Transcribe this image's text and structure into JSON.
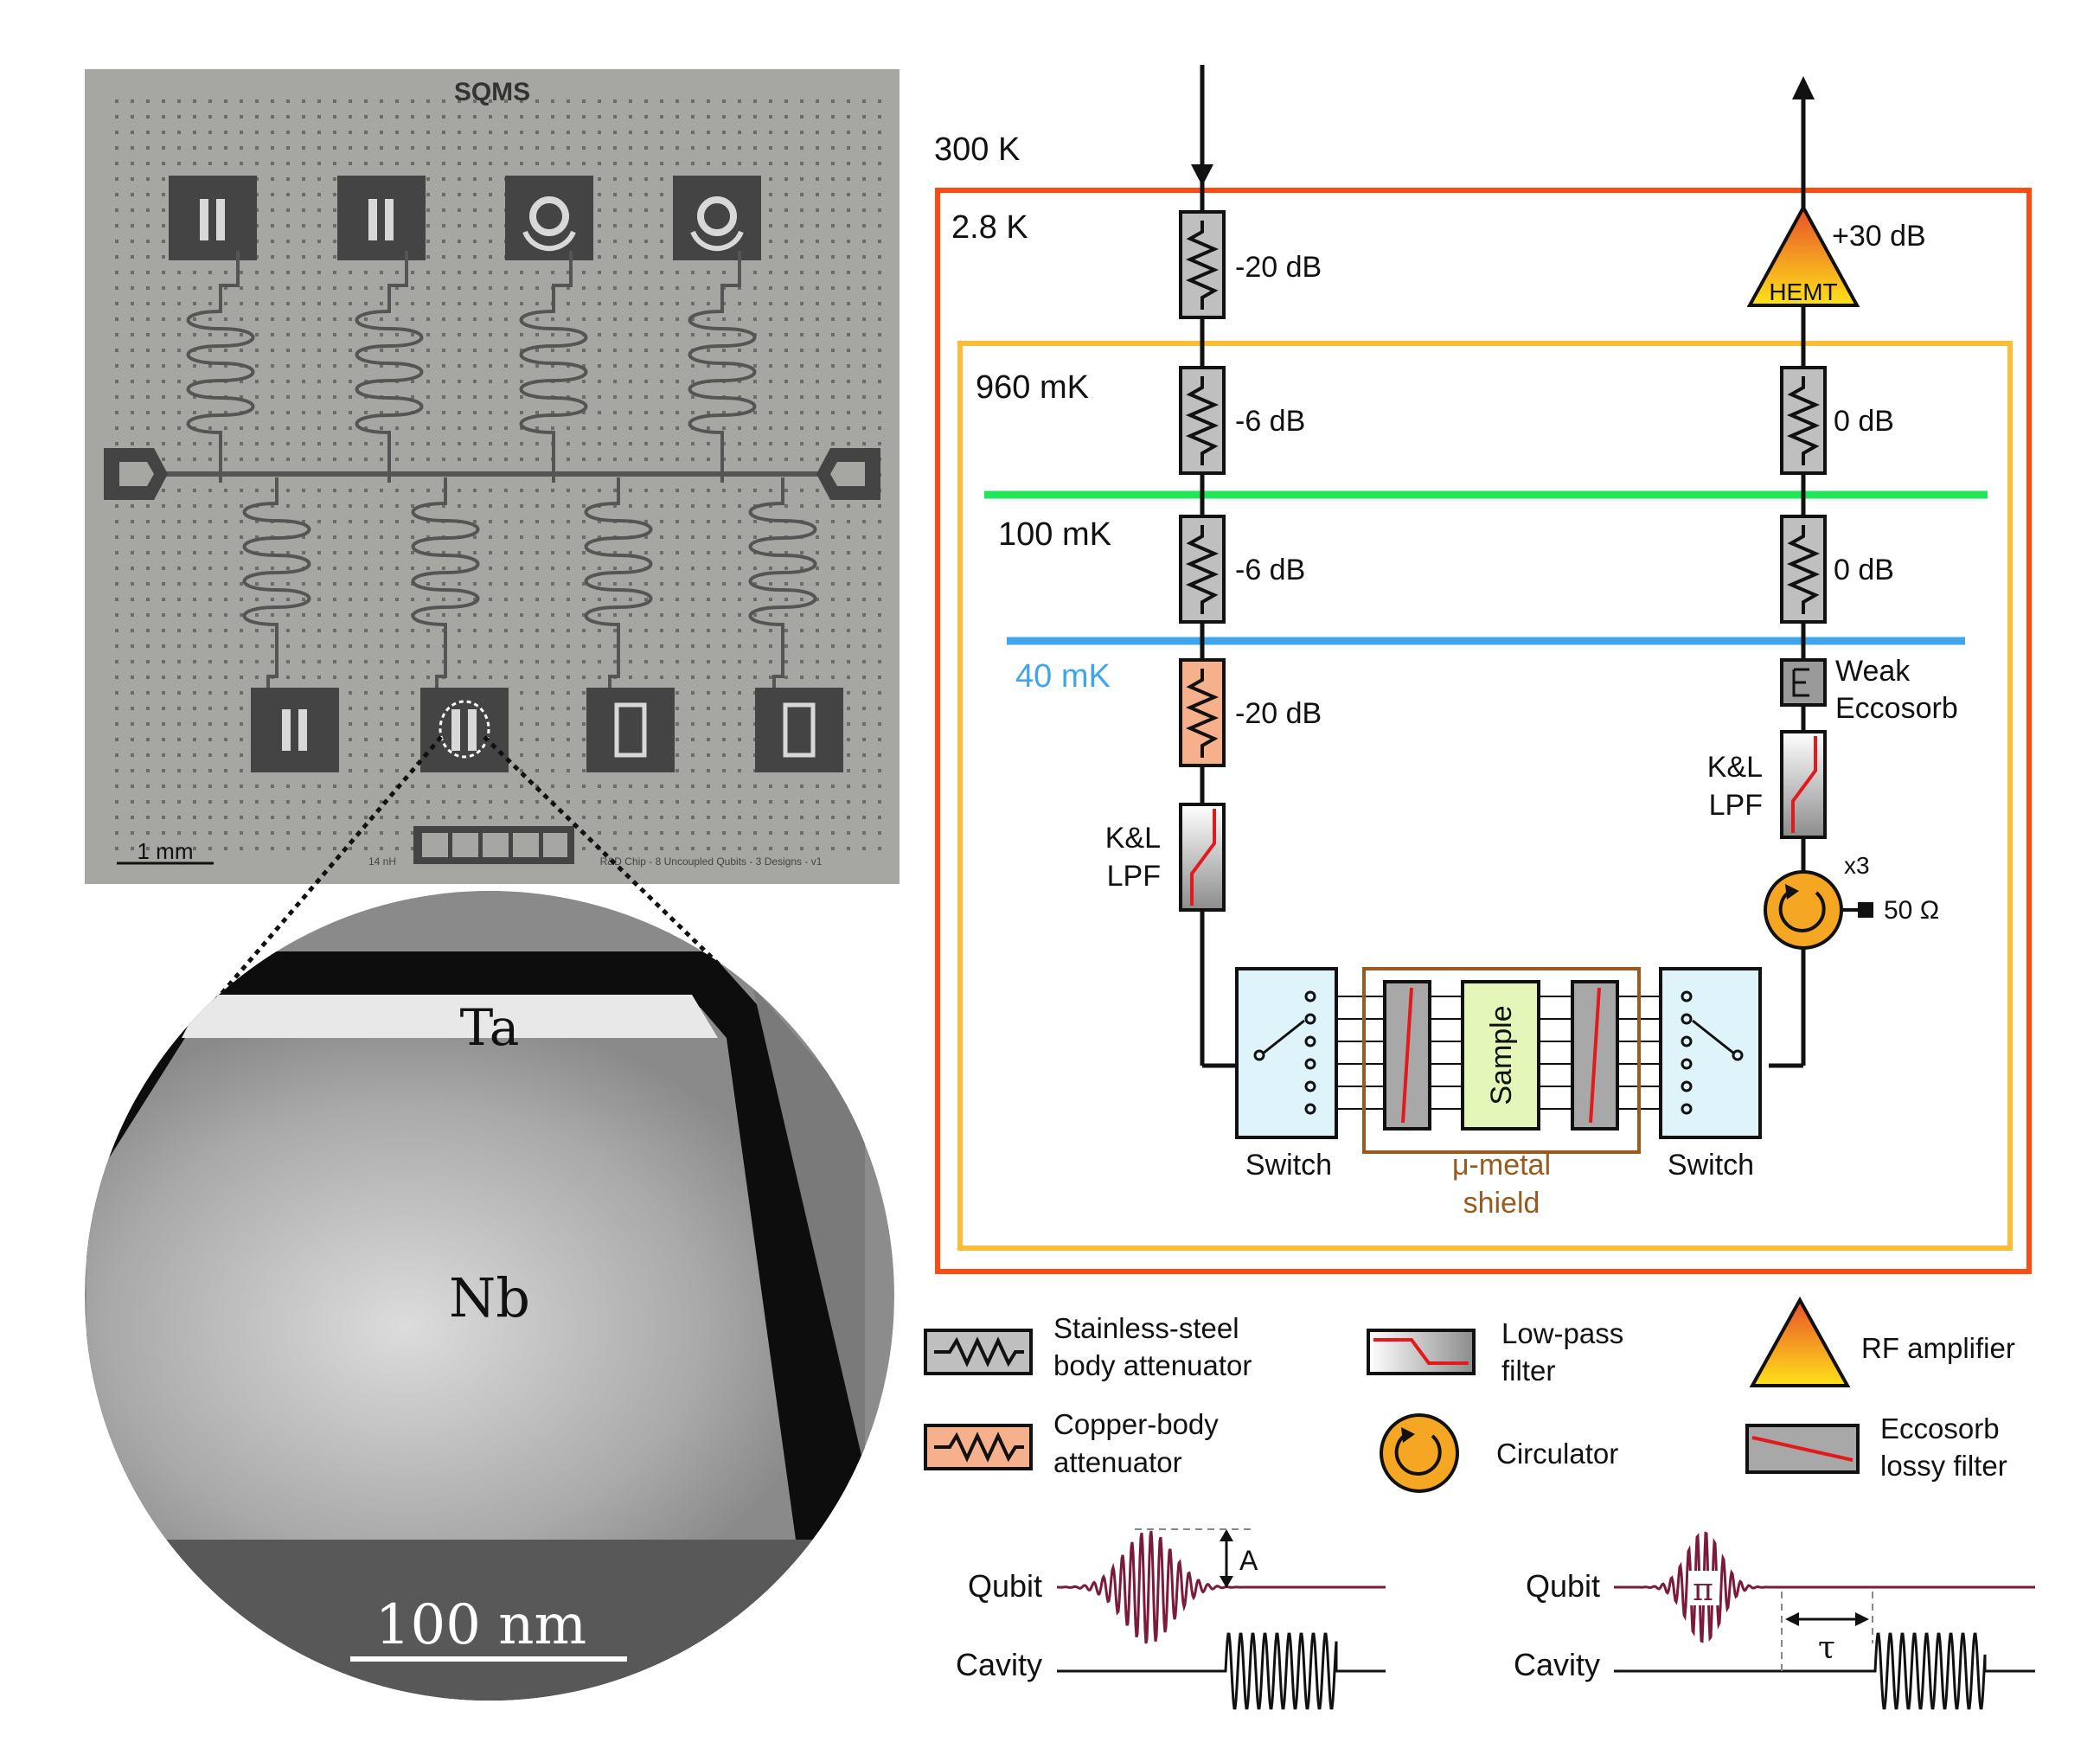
{
  "chip": {
    "logo": "SQMS",
    "scale_bar": "1 mm",
    "inductance_label": "14 nH",
    "chip_caption": "R&D Chip - 8 Uncoupled Qubits - 3 Designs - v1"
  },
  "tem": {
    "top_layer": "Ta",
    "bulk_layer": "Nb",
    "scale_bar": "100 nm"
  },
  "stages": {
    "room": "300 K",
    "k28": "2.8 K",
    "mk960": "960 mK",
    "mk100": "100 mK",
    "mk40": "40 mK"
  },
  "input_line": {
    "att1": "-20 dB",
    "att2": "-6 dB",
    "att3": "-6 dB",
    "att4": "-20 dB",
    "filter": "K&L",
    "filter2": "LPF"
  },
  "output_line": {
    "amp_gain": "+30 dB",
    "amp_name": "HEMT",
    "att1": "0 dB",
    "att2": "0 dB",
    "eccosorb1": "Weak",
    "eccosorb2": "Eccosorb",
    "filter": "K&L",
    "filter2": "LPF",
    "circ_count": "x3",
    "termination": "50 Ω"
  },
  "sample_box": {
    "switch_left": "Switch",
    "switch_right": "Switch",
    "sample": "Sample",
    "shield1": "μ-metal",
    "shield2": "shield"
  },
  "legend": {
    "ss_att1": "Stainless-steel",
    "ss_att2": "body attenuator",
    "cu_att1": "Copper-body",
    "cu_att2": "attenuator",
    "lpf1": "Low-pass",
    "lpf2": "filter",
    "circulator": "Circulator",
    "amplifier": "RF amplifier",
    "ecco1": "Eccosorb",
    "ecco2": "lossy filter"
  },
  "pulses": {
    "qubit_label": "Qubit",
    "cavity_label": "Cavity",
    "amplitude": "A",
    "pi_label": "π",
    "delay": "τ"
  },
  "colors": {
    "stage_300k": "#ff4a12",
    "stage_960mk": "#fbbd36",
    "stage_100mk": "#22e65a",
    "stage_40mk": "#3fa6ee",
    "copper": "#f6b08c",
    "pulse": "#7b1a3a",
    "shield": "#9a5a1e",
    "switch_fill": "#dff3fb",
    "sample_fill": "#e4f7b8",
    "circulator": "#f5a623",
    "filter_line": "#e31a1c"
  }
}
